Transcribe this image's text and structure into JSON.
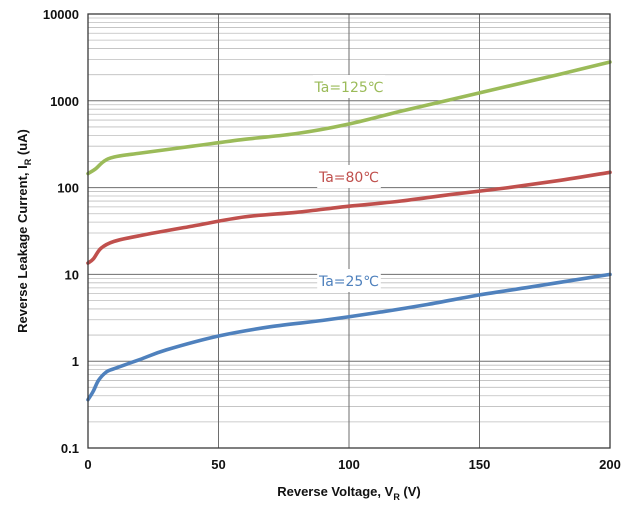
{
  "chart_data": {
    "type": "line",
    "title": "",
    "xlabel": {
      "main": "Reverse Voltage, V",
      "sub": "R",
      "unit": " (V)"
    },
    "ylabel": {
      "main": "Reverse Leakage Current, I",
      "sub": "R",
      "unit": " (uA)"
    },
    "xlim": [
      0,
      200
    ],
    "ylim": [
      0.1,
      10000
    ],
    "yscale": "log",
    "grid": true,
    "legend": "inline labels on series",
    "x_ticks": [
      "0",
      "50",
      "100",
      "150",
      "200"
    ],
    "y_ticks": [
      "0.1",
      "1",
      "10",
      "100",
      "1000",
      "10000"
    ],
    "series": [
      {
        "name": "Ta=125℃",
        "color": "#9bbb59",
        "x": [
          0,
          3,
          6,
          10,
          20,
          40,
          60,
          80,
          100,
          120,
          140,
          160,
          180,
          200
        ],
        "y": [
          145,
          165,
          200,
          225,
          250,
          300,
          360,
          420,
          540,
          760,
          1050,
          1450,
          2000,
          2800
        ]
      },
      {
        "name": "Ta=80℃",
        "color": "#c0504d",
        "x": [
          0,
          2,
          5,
          10,
          20,
          40,
          60,
          80,
          100,
          120,
          140,
          160,
          180,
          200
        ],
        "y": [
          13.5,
          15,
          20,
          24,
          28,
          36,
          46,
          52,
          61,
          70,
          84,
          99,
          120,
          150
        ]
      },
      {
        "name": "Ta=25℃",
        "color": "#4f81bd",
        "x": [
          0,
          2,
          4,
          7,
          10,
          20,
          30,
          50,
          70,
          90,
          110,
          130,
          150,
          170,
          200
        ],
        "y": [
          0.36,
          0.45,
          0.6,
          0.75,
          0.82,
          1.05,
          1.35,
          1.95,
          2.5,
          2.95,
          3.6,
          4.5,
          5.8,
          7.2,
          10
        ]
      }
    ]
  }
}
